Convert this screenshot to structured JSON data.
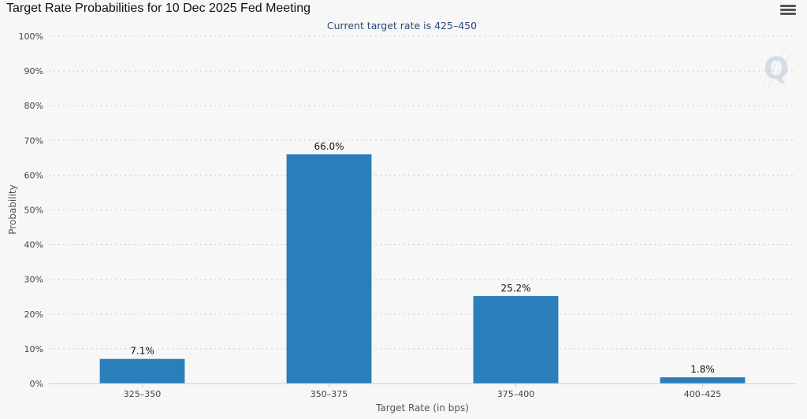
{
  "header": {
    "title": "Target Rate Probabilities for 10 Dec 2025 Fed Meeting",
    "menu_icon": "hamburger-menu-icon"
  },
  "watermark": {
    "text": "Q"
  },
  "chart_data": {
    "type": "bar",
    "title": "Target Rate Probabilities for 10 Dec 2025 Fed Meeting",
    "subtitle": "Current target rate is 425–450",
    "xlabel": "Target Rate (in bps)",
    "ylabel": "Probability",
    "categories": [
      "325–350",
      "350–375",
      "375–400",
      "400–425"
    ],
    "values": [
      7.1,
      66.0,
      25.2,
      1.8
    ],
    "data_labels": [
      "7.1%",
      "66.0%",
      "25.2%",
      "1.8%"
    ],
    "ylim": [
      0,
      100
    ],
    "yticks": [
      "0%",
      "10%",
      "20%",
      "30%",
      "40%",
      "50%",
      "60%",
      "70%",
      "80%",
      "90%",
      "100%"
    ],
    "grid": true,
    "legend": "none",
    "bar_color": "#2a7fba"
  }
}
